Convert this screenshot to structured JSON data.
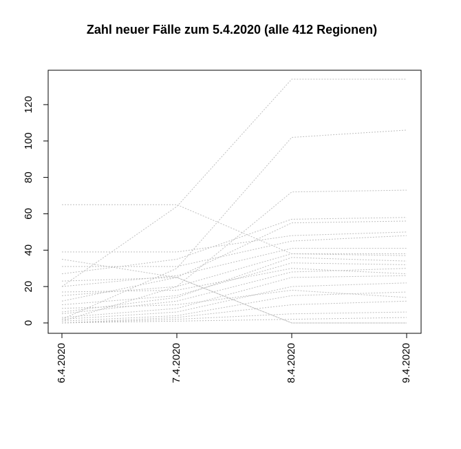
{
  "chart_data": {
    "type": "line",
    "title": "Zahl neuer Fälle zum 5.4.2020 (alle 412 Regionen)",
    "categories": [
      "6.4.2020",
      "7.4.2020",
      "8.4.2020",
      "9.4.2020"
    ],
    "color": "#bebebe",
    "line_style": "dotted",
    "grid": false,
    "ylim": [
      -5.7,
      138.9
    ],
    "yticks": [
      0,
      20,
      40,
      60,
      80,
      100,
      120
    ],
    "series": [
      {
        "values": [
          20,
          64,
          134,
          134
        ]
      },
      {
        "values": [
          2,
          30,
          102,
          106
        ]
      },
      {
        "values": [
          1,
          20,
          72,
          73
        ]
      },
      {
        "values": [
          65,
          65,
          38,
          37
        ]
      },
      {
        "values": [
          39,
          39,
          48,
          50
        ]
      },
      {
        "values": [
          31,
          31,
          45,
          48
        ]
      },
      {
        "values": [
          27,
          35,
          57,
          58
        ]
      },
      {
        "values": [
          23,
          25,
          55,
          56
        ]
      },
      {
        "values": [
          20,
          26,
          41,
          41
        ]
      },
      {
        "values": [
          15,
          20,
          38,
          38
        ]
      },
      {
        "values": [
          10,
          15,
          33,
          32
        ]
      },
      {
        "values": [
          5,
          12,
          28,
          30
        ]
      },
      {
        "values": [
          3,
          8,
          25,
          26
        ]
      },
      {
        "values": [
          2,
          6,
          20,
          22
        ]
      },
      {
        "values": [
          1,
          4,
          15,
          17
        ]
      },
      {
        "values": [
          0,
          3,
          10,
          12
        ]
      },
      {
        "values": [
          0,
          2,
          5,
          6
        ]
      },
      {
        "values": [
          12,
          25,
          0,
          0
        ]
      },
      {
        "values": [
          35,
          25,
          0,
          0
        ]
      },
      {
        "values": [
          8,
          10,
          18,
          14
        ]
      },
      {
        "values": [
          0,
          1,
          2,
          3
        ]
      },
      {
        "values": [
          17,
          18,
          30,
          27
        ]
      },
      {
        "values": [
          6,
          14,
          36,
          34
        ]
      }
    ]
  }
}
